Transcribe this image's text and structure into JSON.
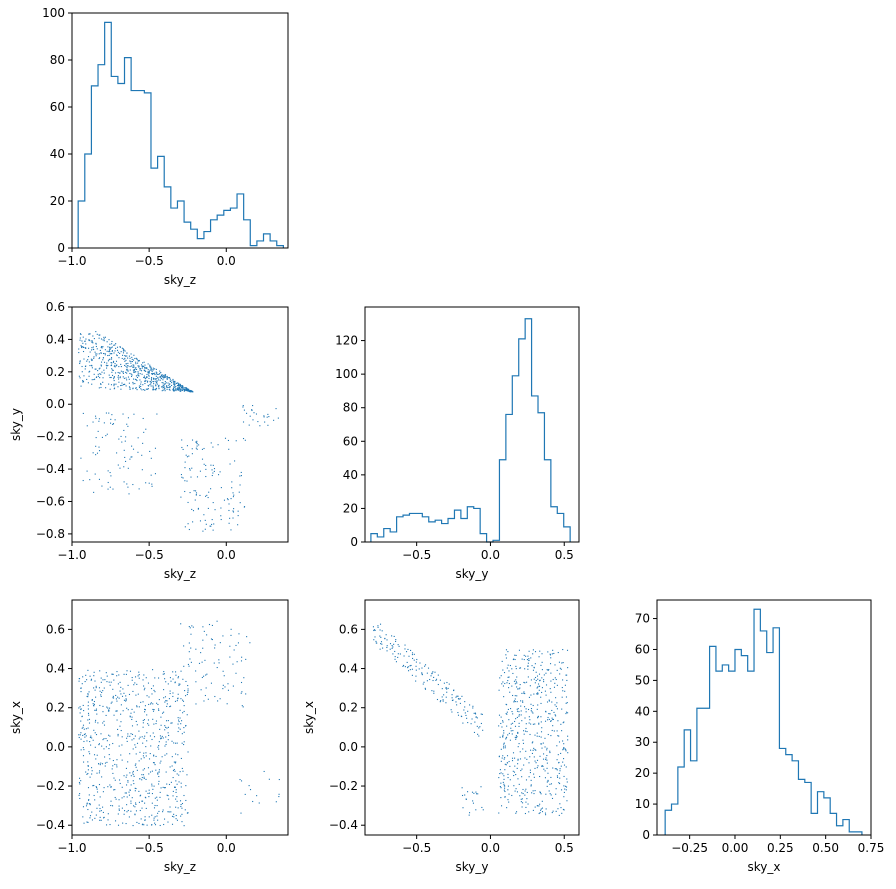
{
  "chart_data": [
    {
      "id": "hist_sky_z",
      "type": "histogram",
      "xlabel": "sky_z",
      "ylabel": "",
      "xlim": [
        -1.0,
        0.4
      ],
      "ylim": [
        0,
        100
      ],
      "xticks": [
        -1.0,
        -0.5,
        0.0
      ],
      "xtick_labels": [
        "−1.0",
        "−0.5",
        "0.0"
      ],
      "yticks": [
        0,
        20,
        40,
        60,
        80,
        100
      ],
      "ytick_labels": [
        "0",
        "20",
        "40",
        "60",
        "80",
        "100"
      ],
      "bin_range": [
        -0.96,
        0.37
      ],
      "values": [
        20,
        40,
        69,
        78,
        96,
        73,
        70,
        81,
        67,
        67,
        66,
        34,
        39,
        26,
        17,
        20,
        11,
        8,
        4,
        7,
        12,
        14,
        16,
        17,
        23,
        12,
        1,
        3,
        6,
        3,
        1
      ]
    },
    {
      "id": "scatter_z_y",
      "type": "scatter",
      "xlabel": "sky_z",
      "ylabel": "sky_y",
      "xlim": [
        -1.0,
        0.4
      ],
      "ylim": [
        -0.85,
        0.6
      ],
      "xticks": [
        -1.0,
        -0.5,
        0.0
      ],
      "xtick_labels": [
        "−1.0",
        "−0.5",
        "0.0"
      ],
      "yticks": [
        -0.8,
        -0.6,
        -0.4,
        -0.2,
        0.0,
        0.2,
        0.4,
        0.6
      ],
      "ytick_labels": [
        "−0.8",
        "−0.6",
        "−0.4",
        "−0.2",
        "0.0",
        "0.2",
        "0.4",
        "0.6"
      ],
      "clusters": [
        {
          "n": 700,
          "x": [
            -0.96,
            -0.22
          ],
          "y_top": [
            0.52,
            0.08
          ],
          "y_bottom": [
            0.1,
            0.08
          ]
        },
        {
          "n": 90,
          "x": [
            -0.95,
            -0.45
          ],
          "y": [
            -0.55,
            -0.05
          ]
        },
        {
          "n": 130,
          "x": [
            -0.3,
            0.12
          ],
          "y": [
            -0.78,
            -0.2
          ]
        },
        {
          "n": 25,
          "x": [
            0.08,
            0.35
          ],
          "y": [
            -0.15,
            0.0
          ]
        }
      ]
    },
    {
      "id": "hist_sky_y",
      "type": "histogram",
      "xlabel": "sky_y",
      "ylabel": "",
      "xlim": [
        -0.85,
        0.6
      ],
      "ylim": [
        0,
        140
      ],
      "xticks": [
        -0.5,
        0.0,
        0.5
      ],
      "xtick_labels": [
        "−0.5",
        "0.0",
        "0.5"
      ],
      "yticks": [
        0,
        20,
        40,
        60,
        80,
        100,
        120
      ],
      "ytick_labels": [
        "0",
        "20",
        "40",
        "60",
        "80",
        "100",
        "120"
      ],
      "bin_range": [
        -0.81,
        0.54
      ],
      "values": [
        5,
        3,
        8,
        6,
        15,
        16,
        17,
        17,
        15,
        12,
        13,
        11,
        14,
        19,
        14,
        21,
        20,
        5,
        0,
        1,
        49,
        76,
        99,
        121,
        133,
        87,
        77,
        49,
        21,
        17,
        9
      ]
    },
    {
      "id": "scatter_z_x",
      "type": "scatter",
      "xlabel": "sky_z",
      "ylabel": "sky_x",
      "xlim": [
        -1.0,
        0.4
      ],
      "ylim": [
        -0.45,
        0.75
      ],
      "xticks": [
        -1.0,
        -0.5,
        0.0
      ],
      "xtick_labels": [
        "−1.0",
        "−0.5",
        "0.0"
      ],
      "yticks": [
        -0.4,
        -0.2,
        0.0,
        0.2,
        0.4,
        0.6
      ],
      "ytick_labels": [
        "−0.4",
        "−0.2",
        "0.0",
        "0.2",
        "0.4",
        "0.6"
      ],
      "clusters": [
        {
          "n": 760,
          "x": [
            -0.96,
            -0.25
          ],
          "y": [
            -0.4,
            0.4
          ]
        },
        {
          "n": 90,
          "x": [
            -0.3,
            0.15
          ],
          "y": [
            0.2,
            0.65
          ]
        },
        {
          "n": 15,
          "x": [
            0.05,
            0.35
          ],
          "y": [
            -0.35,
            -0.1
          ]
        }
      ]
    },
    {
      "id": "scatter_y_x",
      "type": "scatter",
      "xlabel": "sky_y",
      "ylabel": "sky_x",
      "xlim": [
        -0.85,
        0.6
      ],
      "ylim": [
        -0.45,
        0.75
      ],
      "xticks": [
        -0.5,
        0.0,
        0.5
      ],
      "xtick_labels": [
        "−0.5",
        "0.0",
        "0.5"
      ],
      "yticks": [
        -0.4,
        -0.2,
        0.0,
        0.2,
        0.4,
        0.6
      ],
      "ytick_labels": [
        "−0.4",
        "−0.2",
        "0.0",
        "0.2",
        "0.4",
        "0.6"
      ],
      "clusters": [
        {
          "n": 180,
          "x": [
            -0.8,
            -0.05
          ],
          "y_line": [
            0.6,
            0.1
          ],
          "spread": 0.07
        },
        {
          "n": 580,
          "x": [
            0.05,
            0.52
          ],
          "y": [
            -0.35,
            0.5
          ]
        },
        {
          "n": 20,
          "x": [
            -0.2,
            -0.05
          ],
          "y": [
            -0.35,
            -0.2
          ]
        }
      ]
    },
    {
      "id": "hist_sky_x",
      "type": "histogram",
      "xlabel": "sky_x",
      "ylabel": "",
      "xlim": [
        -0.43,
        0.75
      ],
      "ylim": [
        0,
        76
      ],
      "xticks": [
        -0.25,
        0.0,
        0.25,
        0.5,
        0.75
      ],
      "xtick_labels": [
        "−0.25",
        "0.00",
        "0.25",
        "0.50",
        "0.75"
      ],
      "yticks": [
        0,
        10,
        20,
        30,
        40,
        50,
        60,
        70
      ],
      "ytick_labels": [
        "0",
        "10",
        "20",
        "30",
        "40",
        "50",
        "60",
        "70"
      ],
      "bin_range": [
        -0.385,
        0.7
      ],
      "values": [
        8,
        10,
        22,
        34,
        24,
        41,
        41,
        61,
        53,
        55,
        53,
        60,
        58,
        53,
        73,
        66,
        59,
        67,
        28,
        26,
        24,
        18,
        17,
        7,
        14,
        12,
        7,
        3,
        5,
        1,
        1
      ]
    }
  ]
}
